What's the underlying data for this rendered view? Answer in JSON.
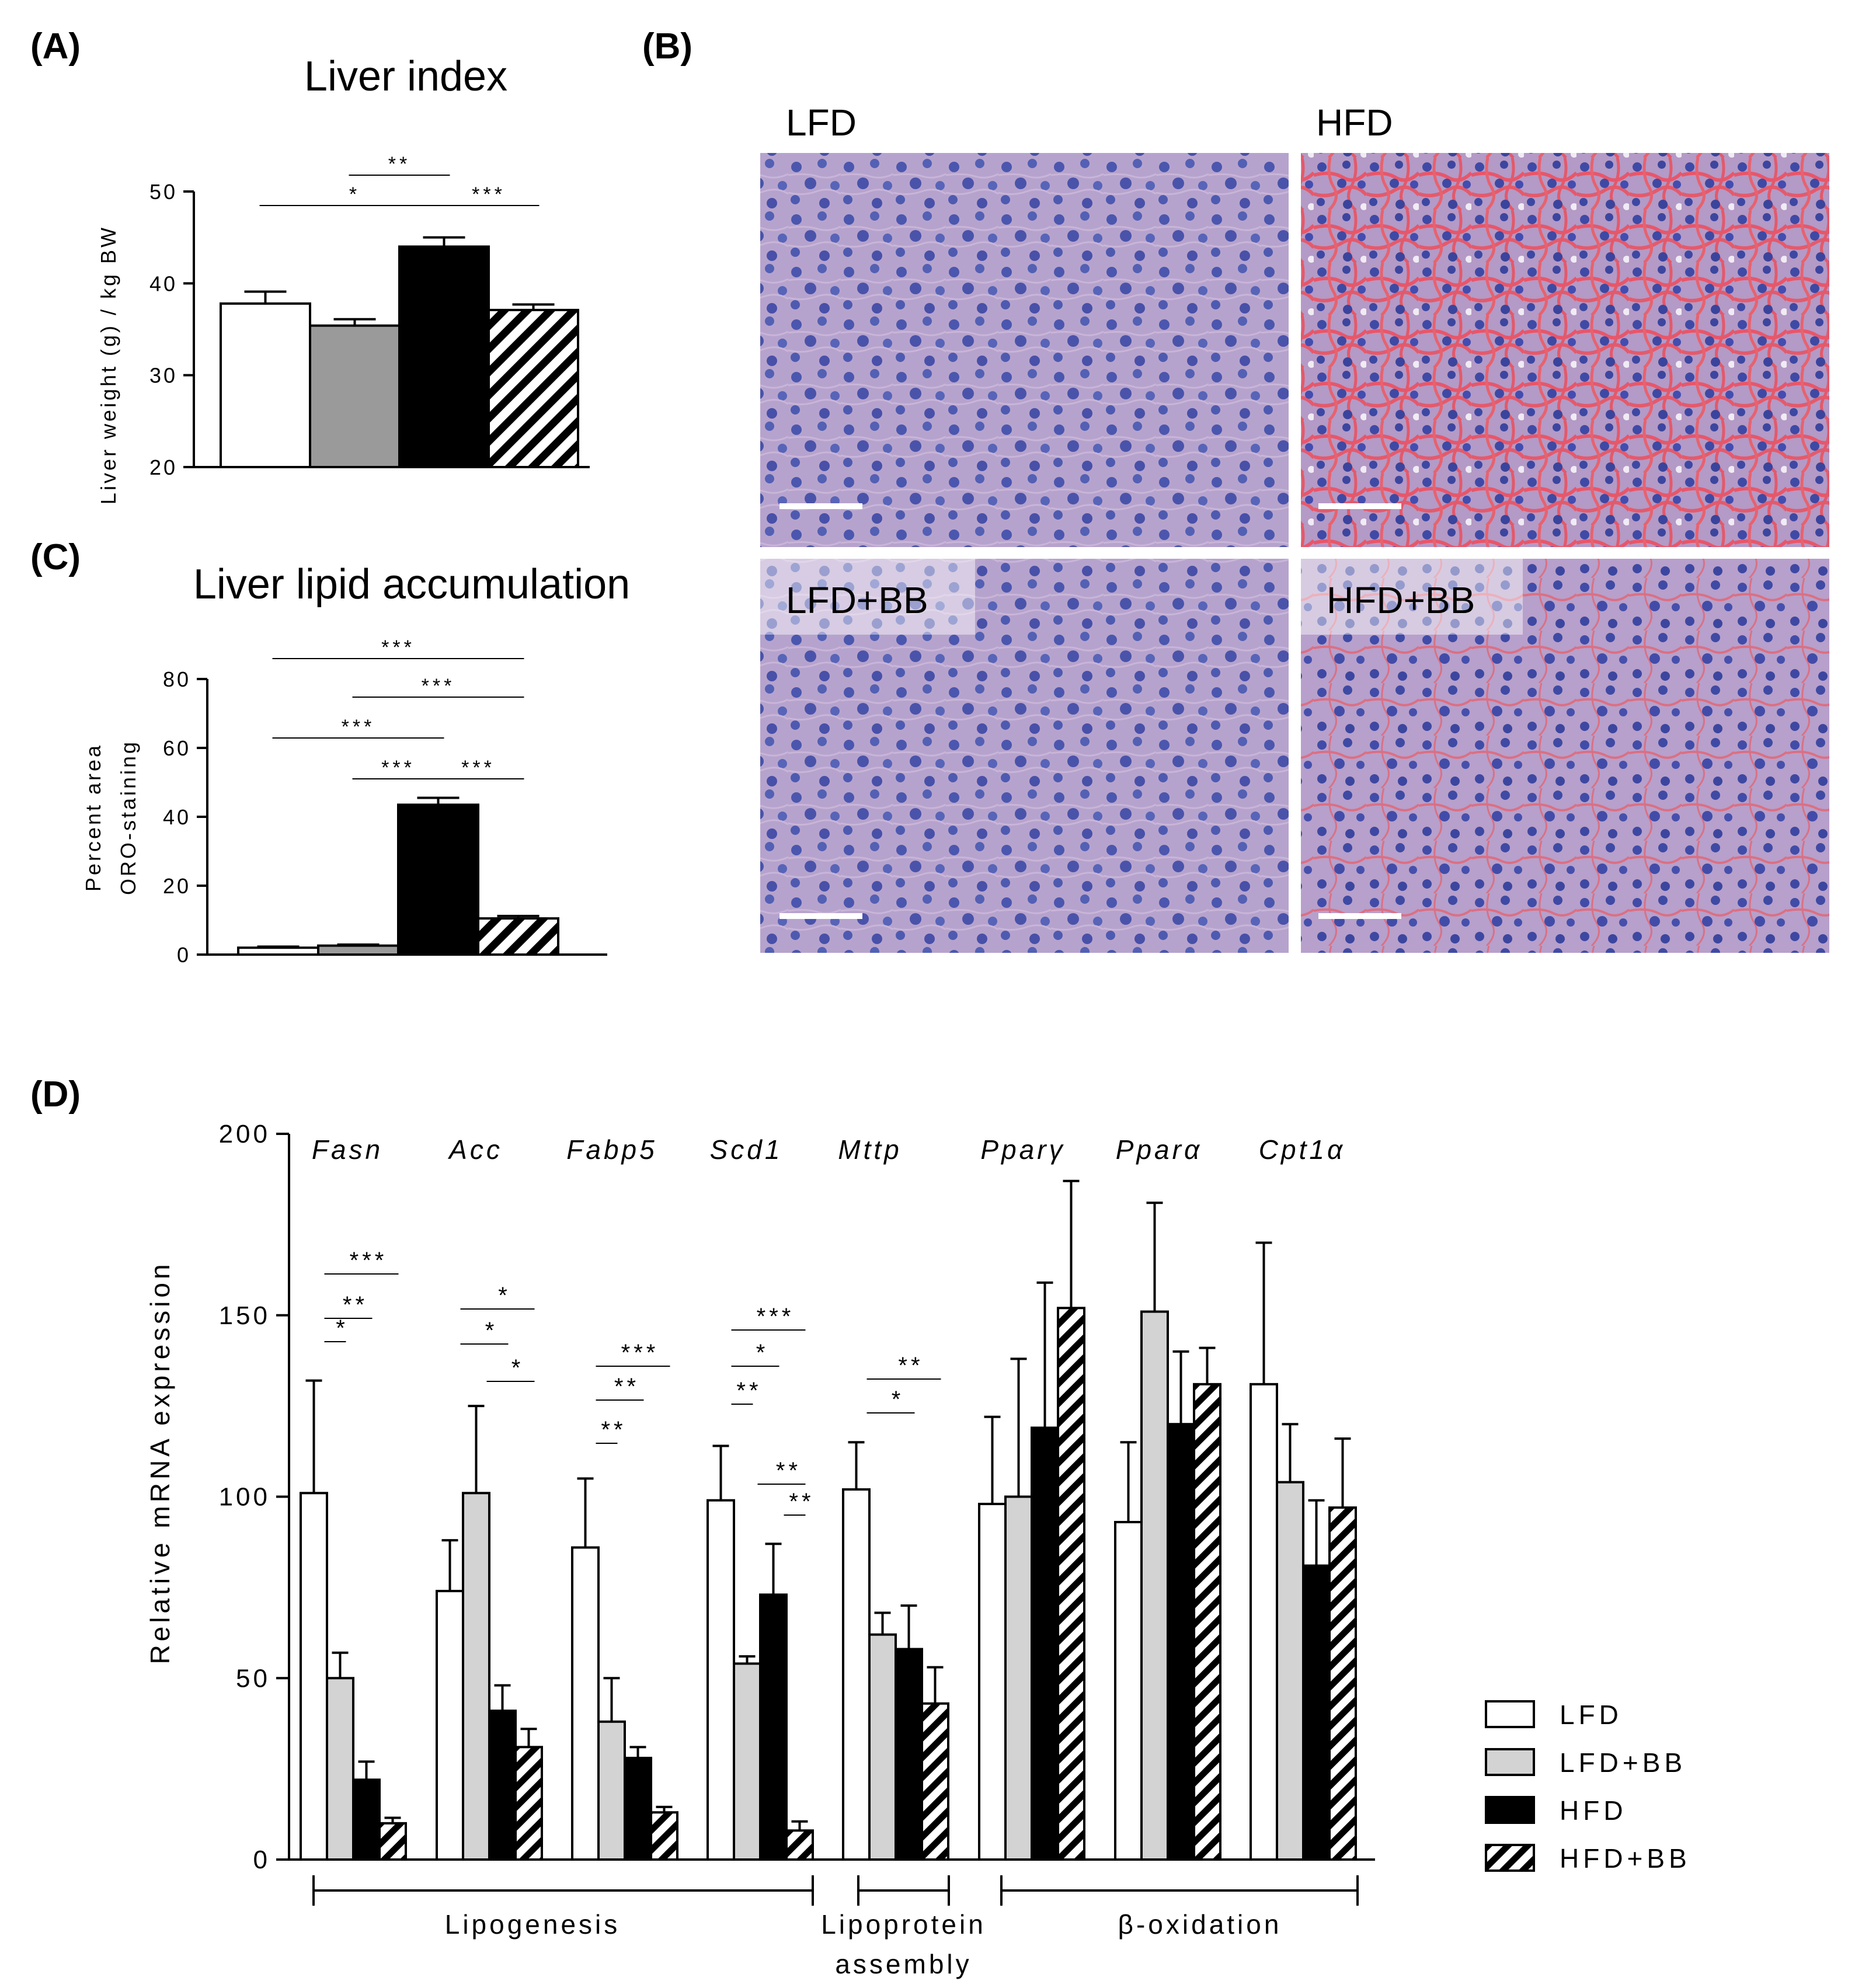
{
  "colors": {
    "LFD": "#ffffff",
    "LFD+BB_A": "#9a9a9a",
    "LFD+BB_D": "#d3d3d3",
    "HFD": "#000000",
    "HFD+BB": "hatch"
  },
  "panels": {
    "A": {
      "label": "(A)"
    },
    "B": {
      "label": "(B)"
    },
    "C": {
      "label": "(C)"
    },
    "D": {
      "label": "(D)"
    }
  },
  "micro": {
    "labels": [
      "LFD",
      "HFD",
      "LFD+BB",
      "HFD+BB"
    ]
  },
  "chart_data": [
    {
      "id": "A",
      "type": "bar",
      "title": "Liver index",
      "ylabel": "Liver weight (g) / kg BW",
      "ylim": [
        20,
        50
      ],
      "yticks": [
        20,
        30,
        40,
        50
      ],
      "categories": [
        "LFD",
        "LFD+BB",
        "HFD",
        "HFD+BB"
      ],
      "values": [
        37.8,
        35.4,
        44.0,
        37.1
      ],
      "errors": [
        1.3,
        0.7,
        1.0,
        0.6
      ],
      "significance": [
        {
          "label": "**",
          "from": 1,
          "to": 2
        },
        {
          "label": "*",
          "from": 0,
          "to": 2
        },
        {
          "label": "***",
          "from": 2,
          "to": 3
        }
      ]
    },
    {
      "id": "C",
      "type": "bar",
      "title": "Liver lipid accumulation",
      "ylabel": [
        "Percent area",
        "ORO-staining"
      ],
      "ylim": [
        0,
        80
      ],
      "yticks": [
        0,
        20,
        40,
        60,
        80
      ],
      "categories": [
        "LFD",
        "LFD+BB",
        "HFD",
        "HFD+BB"
      ],
      "values": [
        2.0,
        2.6,
        43.5,
        10.5
      ],
      "errors": [
        0.3,
        0.3,
        2.0,
        0.7
      ],
      "significance": [
        {
          "label": "***",
          "from": 0,
          "to": 3
        },
        {
          "label": "***",
          "from": 1,
          "to": 3
        },
        {
          "label": "***",
          "from": 0,
          "to": 2
        },
        {
          "label": "***",
          "from": 1,
          "to": 2
        },
        {
          "label": "***",
          "from": 2,
          "to": 3
        }
      ]
    },
    {
      "id": "D",
      "type": "bar",
      "ylabel": "Relative mRNA expression",
      "ylim": [
        0,
        200
      ],
      "yticks": [
        0,
        50,
        100,
        150,
        200
      ],
      "categories": [
        "Fasn",
        "Acc",
        "Fabp5",
        "Scd1",
        "Mttp",
        "Pparγ",
        "Pparα",
        "Cpt1α"
      ],
      "series": [
        {
          "name": "LFD",
          "values": [
            101,
            74,
            86,
            99,
            102,
            98,
            93,
            131
          ],
          "errors": [
            31,
            14,
            19,
            15,
            13,
            24,
            22,
            39
          ]
        },
        {
          "name": "LFD+BB",
          "values": [
            50,
            101,
            38,
            54,
            62,
            100,
            151,
            104
          ],
          "errors": [
            7,
            24,
            12,
            2,
            6,
            38,
            30,
            16
          ]
        },
        {
          "name": "HFD",
          "values": [
            22,
            41,
            28,
            73,
            58,
            119,
            120,
            81
          ],
          "errors": [
            5,
            7,
            3,
            14,
            12,
            40,
            20,
            18
          ]
        },
        {
          "name": "HFD+BB",
          "values": [
            10,
            31,
            13,
            8,
            43,
            152,
            131,
            97
          ],
          "errors": [
            1.5,
            5,
            1.5,
            2.5,
            10,
            35,
            10,
            19
          ]
        }
      ],
      "significance": [
        {
          "gene": 0,
          "label": "***",
          "from": 0,
          "to": 3
        },
        {
          "gene": 0,
          "label": "**",
          "from": 0,
          "to": 2
        },
        {
          "gene": 0,
          "label": "*",
          "from": 0,
          "to": 1
        },
        {
          "gene": 1,
          "label": "*",
          "from": 0,
          "to": 3
        },
        {
          "gene": 1,
          "label": "*",
          "from": 0,
          "to": 2
        },
        {
          "gene": 1,
          "label": "*",
          "from": 1,
          "to": 3
        },
        {
          "gene": 2,
          "label": "***",
          "from": 0,
          "to": 3
        },
        {
          "gene": 2,
          "label": "**",
          "from": 0,
          "to": 2
        },
        {
          "gene": 2,
          "label": "**",
          "from": 0,
          "to": 1
        },
        {
          "gene": 3,
          "label": "***",
          "from": 0,
          "to": 3
        },
        {
          "gene": 3,
          "label": "*",
          "from": 0,
          "to": 2
        },
        {
          "gene": 3,
          "label": "**",
          "from": 0,
          "to": 1
        },
        {
          "gene": 3,
          "label": "**",
          "from": 1,
          "to": 3
        },
        {
          "gene": 3,
          "label": "**",
          "from": 2,
          "to": 3
        },
        {
          "gene": 4,
          "label": "**",
          "from": 0,
          "to": 3
        },
        {
          "gene": 4,
          "label": "*",
          "from": 0,
          "to": 2
        }
      ],
      "groups": [
        {
          "label": "Lipogenesis",
          "from": 0,
          "to": 3
        },
        {
          "label": "Lipoprotein assembly",
          "lines": [
            "Lipoprotein",
            "assembly"
          ],
          "from": 4,
          "to": 4
        },
        {
          "label": "β-oxidation",
          "from": 5,
          "to": 7
        }
      ],
      "legend": {
        "position": "right",
        "entries": [
          "LFD",
          "LFD+BB",
          "HFD",
          "HFD+BB"
        ]
      }
    }
  ]
}
